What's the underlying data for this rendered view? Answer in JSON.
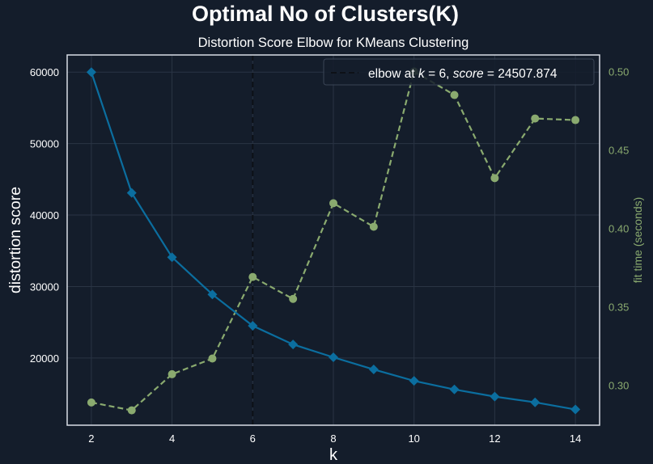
{
  "figure": {
    "suptitle": "Optimal No of Clusters(K)",
    "background": "#141d2b"
  },
  "chart_data": {
    "type": "line",
    "title": "Distortion Score Elbow for KMeans Clustering",
    "xlabel": "k",
    "ylabel": "distortion score",
    "y2label": "fit time (seconds)",
    "x": [
      2,
      3,
      4,
      5,
      6,
      7,
      8,
      9,
      10,
      11,
      12,
      13,
      14
    ],
    "xlim": [
      1.4,
      14.6
    ],
    "ylim": [
      10600,
      62400
    ],
    "y2lim": [
      0.2745,
      0.5105
    ],
    "xticks": [
      2,
      4,
      6,
      8,
      10,
      12,
      14
    ],
    "yticks": [
      20000,
      30000,
      40000,
      50000,
      60000
    ],
    "y2ticks": [
      0.3,
      0.35,
      0.4,
      0.45,
      0.5
    ],
    "grid": true,
    "legend_position": "top-right",
    "series": [
      {
        "name": "distortion score",
        "axis": "left",
        "marker": "diamond",
        "style": "solid",
        "color": "#0b6e9f",
        "values": [
          60000,
          43100,
          34100,
          28900,
          24507.874,
          21900,
          20100,
          18400,
          16800,
          15600,
          14600,
          13800,
          12800
        ]
      },
      {
        "name": "fit time",
        "axis": "right",
        "marker": "circle",
        "style": "dashed",
        "color": "#8aaa6f",
        "values": [
          0.289,
          0.284,
          0.307,
          0.317,
          0.369,
          0.355,
          0.416,
          0.401,
          0.5,
          0.485,
          0.432,
          0.47,
          0.469
        ]
      }
    ],
    "elbow": {
      "k": 6,
      "legend_label": "elbow at $k=6$, $score=24507.874$",
      "legend_label_plain": "elbow at ",
      "legend_k": "k",
      "legend_k_value": " = 6, ",
      "legend_score": "score",
      "legend_score_value": " = 24507.874",
      "color": "#0d1117"
    }
  }
}
